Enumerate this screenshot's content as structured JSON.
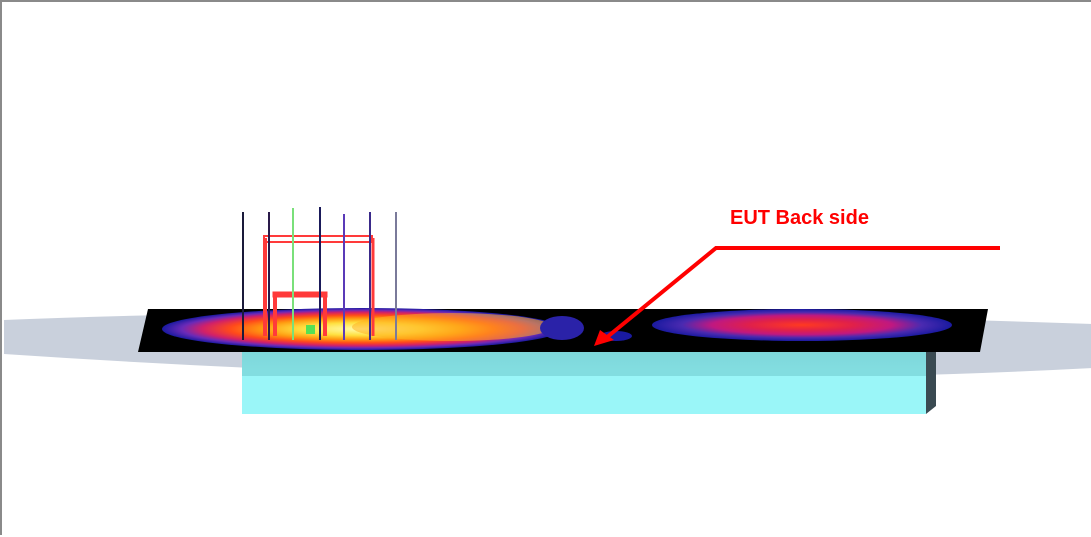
{
  "annotation": {
    "label": "EUT Back side",
    "color": "#ff0000"
  },
  "colors": {
    "background": "#ffffff",
    "frame": "#8a8a8a",
    "ground_plane": "#c9d0dc",
    "eut_body": "#9af6f8",
    "eut_body_shadow": "#5fb4b8",
    "scan_plane": "#000000",
    "probe_frame": "#ff3a3a",
    "heatmap_scale": [
      "#000000",
      "#1a1aa0",
      "#6a2ab8",
      "#d0206a",
      "#ff4a1a",
      "#ff9a10",
      "#ffe040",
      "#fffcb0"
    ]
  }
}
